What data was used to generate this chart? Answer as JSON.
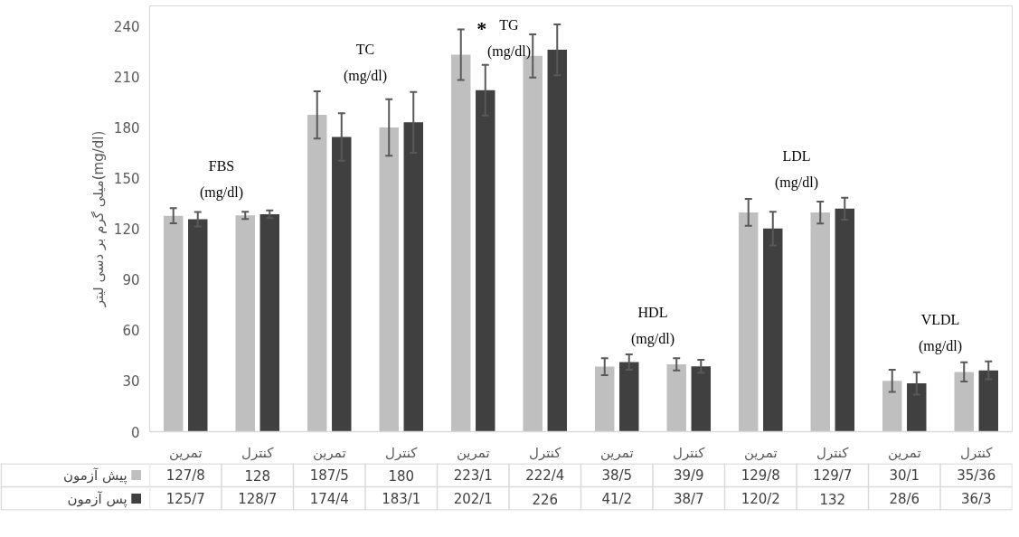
{
  "chart_data": {
    "type": "bar",
    "ylabel": "میلی گرم بر دسی لیتر(mg/dl)",
    "categories": [
      "تمرین",
      "کنترل",
      "تمرین",
      "کنترل",
      "تمرین",
      "کنترل",
      "تمرین",
      "کنترل",
      "تمرین",
      "کنترل",
      "تمرین",
      "کنترل"
    ],
    "series": [
      {
        "name": "پیش آزمون",
        "color": "#bfbfbf",
        "values": [
          127.8,
          128,
          187.5,
          180,
          223.1,
          222.4,
          38.5,
          39.9,
          129.8,
          129.7,
          30.1,
          35.36
        ],
        "errors": [
          4.5,
          2.1,
          14,
          16.7,
          15,
          12.8,
          5,
          3.6,
          8,
          6.5,
          6.6,
          5.7
        ],
        "value_labels": [
          "127/8",
          "128",
          "187/5",
          "180",
          "223/1",
          "222/4",
          "38/5",
          "39/9",
          "129/8",
          "129/7",
          "30/1",
          "35/36"
        ]
      },
      {
        "name": "پس آزمون",
        "color": "#404040",
        "values": [
          125.7,
          128.7,
          174.4,
          183.1,
          202.1,
          226,
          41.2,
          38.7,
          120.2,
          132,
          28.6,
          36.3
        ],
        "errors": [
          4.3,
          2.3,
          14,
          18,
          15,
          15,
          4.6,
          3.8,
          10,
          6.5,
          6.6,
          5.3
        ],
        "value_labels": [
          "125/7",
          "128/7",
          "174/4",
          "183/1",
          "202/1",
          "226",
          "41/2",
          "38/7",
          "120/2",
          "132",
          "28/6",
          "36/3"
        ]
      }
    ],
    "ylim": [
      0,
      252
    ],
    "yticks": [
      0,
      30,
      60,
      90,
      120,
      150,
      180,
      210,
      240
    ],
    "grid": false,
    "legend": "bottom",
    "annotations": [
      "FBS\n(mg/dl)",
      "TC\n(mg/dl)",
      "TG\n(mg/dl)",
      "*",
      "HDL\n(mg/dl)",
      "LDL\n(mg/dl)",
      "VLDL\n(mg/dl)"
    ]
  }
}
